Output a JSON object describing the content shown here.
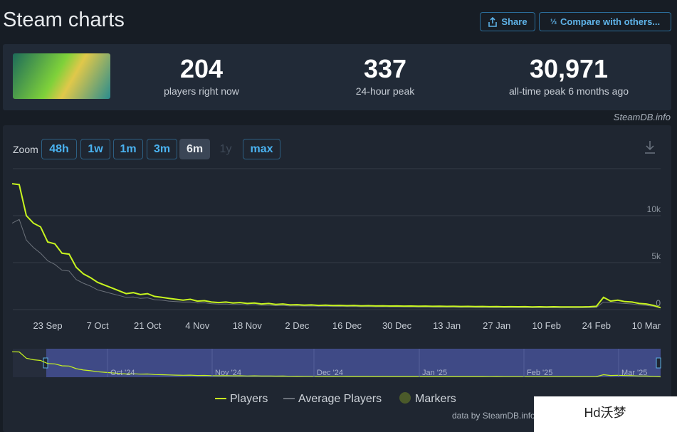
{
  "header": {
    "title": "Steam charts",
    "share": "Share",
    "compare": "Compare with others..."
  },
  "stats": [
    {
      "value": "204",
      "label": "players right now"
    },
    {
      "value": "337",
      "label": "24-hour peak"
    },
    {
      "value": "30,971",
      "label": "all-time peak 6 months ago"
    }
  ],
  "source": "SteamDB.info",
  "zoom": {
    "label": "Zoom",
    "buttons": [
      "48h",
      "1w",
      "1m",
      "3m",
      "6m",
      "1y",
      "max"
    ]
  },
  "chart_data": {
    "type": "line",
    "categories": [
      null,
      null,
      null,
      null,
      null,
      "23 Sep",
      null,
      null,
      null,
      null,
      null,
      null,
      "7 Oct",
      null,
      null,
      null,
      null,
      null,
      null,
      "21 Oct",
      null,
      null,
      null,
      null,
      null,
      null,
      "4 Nov",
      null,
      null,
      null,
      null,
      null,
      null,
      "18 Nov",
      null,
      null,
      null,
      null,
      null,
      null,
      "2 Dec",
      null,
      null,
      null,
      null,
      null,
      null,
      "16 Dec",
      null,
      null,
      null,
      null,
      null,
      null,
      "30 Dec",
      null,
      null,
      null,
      null,
      null,
      null,
      "13 Jan",
      null,
      null,
      null,
      null,
      null,
      null,
      "27 Jan",
      null,
      null,
      null,
      null,
      null,
      null,
      "10 Feb",
      null,
      null,
      null,
      null,
      null,
      null,
      "24 Feb",
      null,
      null,
      null,
      null,
      null,
      null,
      "10 Mar",
      null,
      null
    ],
    "series": [
      {
        "name": "Players",
        "color": "#c8f51f",
        "values": [
          13400,
          13300,
          10000,
          9200,
          8800,
          7200,
          7000,
          6000,
          5900,
          4500,
          3800,
          3400,
          2900,
          2600,
          2300,
          2000,
          1700,
          1800,
          1600,
          1700,
          1400,
          1300,
          1200,
          1100,
          1000,
          1100,
          900,
          950,
          800,
          750,
          800,
          700,
          750,
          650,
          700,
          600,
          650,
          550,
          600,
          500,
          520,
          480,
          500,
          450,
          470,
          430,
          450,
          420,
          430,
          400,
          420,
          390,
          400,
          380,
          390,
          370,
          380,
          360,
          370,
          350,
          360,
          340,
          350,
          330,
          340,
          320,
          330,
          310,
          320,
          300,
          310,
          300,
          310,
          290,
          300,
          290,
          300,
          280,
          290,
          280,
          290,
          300,
          350,
          1300,
          900,
          1000,
          850,
          800,
          650,
          600,
          450,
          204
        ]
      },
      {
        "name": "Average Players",
        "color": "#6b717a",
        "values": [
          9200,
          9600,
          7400,
          6600,
          6000,
          5200,
          4800,
          4200,
          4100,
          3200,
          2800,
          2500,
          2100,
          1900,
          1700,
          1500,
          1300,
          1350,
          1200,
          1250,
          1050,
          1000,
          900,
          850,
          800,
          820,
          700,
          720,
          620,
          580,
          600,
          540,
          560,
          500,
          520,
          460,
          480,
          420,
          450,
          390,
          400,
          370,
          380,
          350,
          360,
          330,
          340,
          320,
          330,
          300,
          310,
          290,
          300,
          280,
          290,
          270,
          280,
          260,
          270,
          250,
          260,
          240,
          250,
          230,
          240,
          220,
          230,
          210,
          220,
          200,
          210,
          200,
          210,
          190,
          200,
          190,
          200,
          180,
          190,
          180,
          190,
          200,
          230,
          800,
          750,
          700,
          650,
          600,
          500,
          450,
          350,
          180
        ]
      }
    ],
    "ylim": [
      0,
      15000
    ],
    "yticks": [
      0,
      {
        "value": 5000,
        "label": "5k"
      },
      {
        "value": 10000,
        "label": "10k"
      }
    ],
    "grid": true
  },
  "navigator": {
    "labels": [
      "Oct '24",
      "Nov '24",
      "Dec '24",
      "Jan '25",
      "Feb '25",
      "Mar '25"
    ]
  },
  "legend": {
    "markers": "Markers"
  },
  "credit": "data by SteamDB.info",
  "watermark": "Hd沃梦"
}
